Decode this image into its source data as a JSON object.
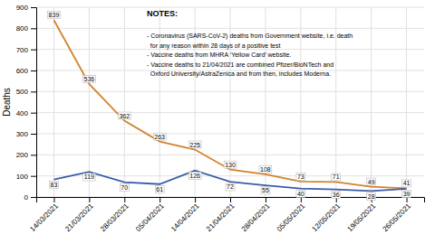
{
  "chart_data": {
    "type": "line",
    "categories": [
      "14/03/2021",
      "21/03/2021",
      "28/03/2021",
      "05/04/2021",
      "14/04/2021",
      "21/04/2021",
      "28/04/2021",
      "05/05/2021",
      "12/05/2021",
      "19/05/2021",
      "26/05/2021"
    ],
    "series": [
      {
        "color": "#D4822A",
        "values": [
          839,
          536,
          362,
          263,
          225,
          130,
          108,
          73,
          71,
          49,
          41
        ]
      },
      {
        "color": "#3B5CA8",
        "values": [
          83,
          119,
          70,
          61,
          126,
          72,
          55,
          40,
          36,
          28,
          39
        ]
      }
    ],
    "ylabel": "Deaths",
    "ylim": [
      0,
      900
    ],
    "yticks": [
      0,
      100,
      200,
      300,
      400,
      500,
      600,
      700,
      800,
      900
    ],
    "grid": true,
    "data_labels": true,
    "annotations": [
      "NOTES:",
      "- Coronavirus (SARS-CoV-2) deaths from Government website, i.e. death",
      "  for any reason within 28 days of a positive test",
      "- Vaccine deaths from MHRA ‘Yellow Card’ website.",
      "- Vaccine deaths to 21/04/2021 are combined Pfizer/BioNTech and",
      "  Oxford University/AstraZenica and from then, includes Moderna."
    ]
  }
}
